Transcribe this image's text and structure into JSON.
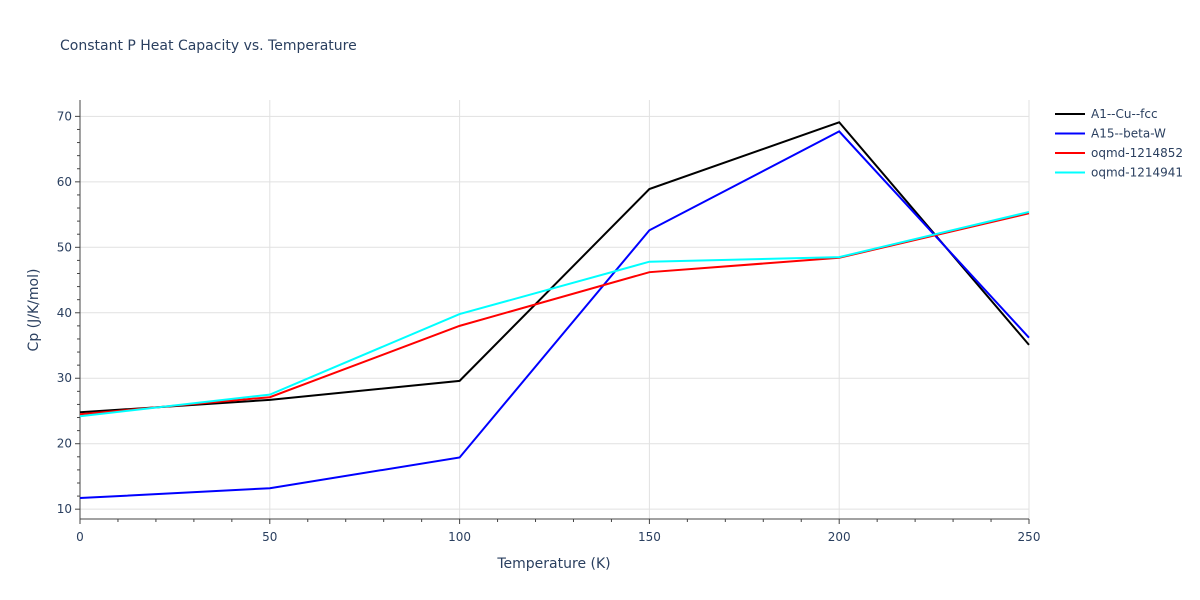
{
  "chart_data": {
    "type": "line",
    "title": "Constant P Heat Capacity vs. Temperature",
    "xlabel": "Temperature (K)",
    "ylabel": "Cp (J/K/mol)",
    "xlim": [
      0,
      250
    ],
    "ylim": [
      8.5,
      72.5
    ],
    "xticks": [
      0,
      50,
      100,
      150,
      200,
      250
    ],
    "yticks": [
      10,
      20,
      30,
      40,
      50,
      60,
      70
    ],
    "grid": true,
    "legend_position": "top-right",
    "x": [
      0,
      50,
      100,
      150,
      200,
      250
    ],
    "series": [
      {
        "name": "A1--Cu--fcc",
        "color": "#000000",
        "values": [
          24.8,
          26.7,
          29.6,
          58.9,
          69.1,
          35.1
        ]
      },
      {
        "name": "A15--beta-W",
        "color": "#0000ff",
        "values": [
          11.7,
          13.2,
          17.9,
          52.6,
          67.7,
          36.2
        ]
      },
      {
        "name": "oqmd-1214852",
        "color": "#ff0000",
        "values": [
          24.5,
          27.1,
          38.0,
          46.2,
          48.4,
          55.2
        ]
      },
      {
        "name": "oqmd-1214941",
        "color": "#00ffff",
        "values": [
          24.2,
          27.5,
          39.8,
          47.8,
          48.5,
          55.4
        ]
      }
    ]
  }
}
